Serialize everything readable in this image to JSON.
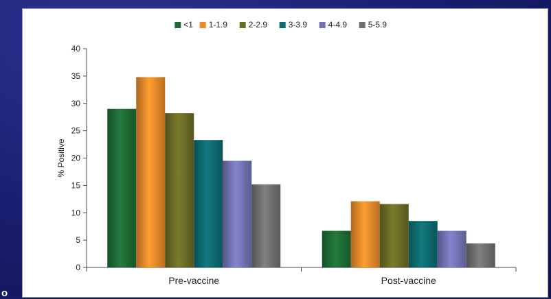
{
  "slide": {
    "fragment_text": "o"
  },
  "chart_data": {
    "type": "bar",
    "title": "",
    "xlabel": "",
    "ylabel": "% Positive",
    "ylim": [
      0,
      40
    ],
    "yticks": [
      0,
      5,
      10,
      15,
      20,
      25,
      30,
      35,
      40
    ],
    "grid": false,
    "legend_position": "top",
    "categories": [
      "Pre-vaccine",
      "Post-vaccine"
    ],
    "series": [
      {
        "name": "<1",
        "color": "#1e6b34",
        "values": [
          29,
          6.7
        ]
      },
      {
        "name": "1-1.9",
        "color": "#e8892a",
        "values": [
          34.8,
          12.1
        ]
      },
      {
        "name": "2-2.9",
        "color": "#6b6b25",
        "values": [
          28.2,
          11.6
        ]
      },
      {
        "name": "3-3.9",
        "color": "#0e6a6e",
        "values": [
          23.3,
          8.5
        ]
      },
      {
        "name": "4-4.9",
        "color": "#7373b4",
        "values": [
          19.5,
          6.7
        ]
      },
      {
        "name": "5-5.9",
        "color": "#6f6f6f",
        "values": [
          15.2,
          4.4
        ]
      }
    ]
  }
}
